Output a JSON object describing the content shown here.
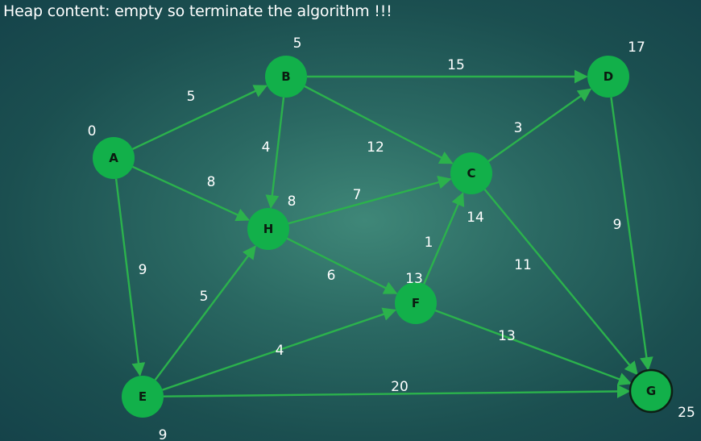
{
  "heading": "Heap content: empty so terminate the algorithm !!!",
  "colors": {
    "edge": "#2bb24c",
    "node": "#12b04a",
    "label": "#ffffff"
  },
  "nodes": [
    {
      "id": "A",
      "dist": "0"
    },
    {
      "id": "B",
      "dist": "5"
    },
    {
      "id": "C",
      "dist": "14"
    },
    {
      "id": "D",
      "dist": "17"
    },
    {
      "id": "E",
      "dist": "9"
    },
    {
      "id": "F",
      "dist": "13"
    },
    {
      "id": "G",
      "dist": "25"
    },
    {
      "id": "H",
      "dist": "8"
    }
  ],
  "edges": [
    {
      "from": "A",
      "to": "B",
      "weight": "5"
    },
    {
      "from": "A",
      "to": "H",
      "weight": "8"
    },
    {
      "from": "A",
      "to": "E",
      "weight": "9"
    },
    {
      "from": "B",
      "to": "D",
      "weight": "15"
    },
    {
      "from": "B",
      "to": "C",
      "weight": "12"
    },
    {
      "from": "B",
      "to": "H",
      "weight": "4"
    },
    {
      "from": "H",
      "to": "C",
      "weight": "7"
    },
    {
      "from": "H",
      "to": "F",
      "weight": "6"
    },
    {
      "from": "C",
      "to": "D",
      "weight": "3"
    },
    {
      "from": "C",
      "to": "G",
      "weight": "11"
    },
    {
      "from": "D",
      "to": "G",
      "weight": "9"
    },
    {
      "from": "F",
      "to": "C",
      "weight": "1"
    },
    {
      "from": "F",
      "to": "G",
      "weight": "13"
    },
    {
      "from": "E",
      "to": "H",
      "weight": "5"
    },
    {
      "from": "E",
      "to": "F",
      "weight": "4"
    },
    {
      "from": "E",
      "to": "G",
      "weight": "20"
    }
  ]
}
